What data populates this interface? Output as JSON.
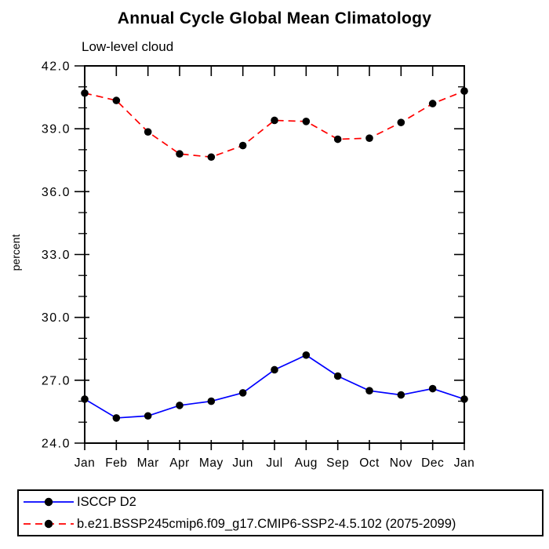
{
  "title": "Annual Cycle Global Mean Climatology",
  "subtitle": "Low-level cloud",
  "colors": {
    "background": "#ffffff",
    "axis": "#000000",
    "series1": "#0000ff",
    "series2": "#ff0000",
    "marker": "#000000"
  },
  "chart_data": {
    "type": "line",
    "title": "Annual Cycle Global Mean Climatology",
    "subtitle": "Low-level cloud",
    "xlabel": "",
    "ylabel": "percent",
    "categories": [
      "Jan",
      "Feb",
      "Mar",
      "Apr",
      "May",
      "Jun",
      "Jul",
      "Aug",
      "Sep",
      "Oct",
      "Nov",
      "Dec",
      "Jan"
    ],
    "ylim": [
      24.0,
      42.0
    ],
    "ytick_major_values": [
      24,
      27,
      30,
      33,
      36,
      39,
      42
    ],
    "ytick_major_labels": [
      "24.0",
      "27.0",
      "30.0",
      "33.0",
      "36.0",
      "39.0",
      "42.0"
    ],
    "ytick_minor_step": 1.0,
    "grid": false,
    "legend_position": "bottom-left-box",
    "series": [
      {
        "name": "ISCCP D2",
        "color": "#0000ff",
        "line_style": "solid",
        "marker": "filled-circle",
        "marker_color": "#000000",
        "values": [
          26.1,
          25.2,
          25.3,
          25.8,
          26.0,
          26.4,
          27.5,
          28.2,
          27.2,
          26.5,
          26.3,
          26.6,
          26.1
        ]
      },
      {
        "name": "b.e21.BSSP245cmip6.f09_g17.CMIP6-SSP2-4.5.102 (2075-2099)",
        "color": "#ff0000",
        "line_style": "dashed",
        "marker": "filled-circle",
        "marker_color": "#000000",
        "values": [
          40.7,
          40.35,
          38.85,
          37.8,
          37.65,
          38.2,
          39.4,
          39.35,
          38.5,
          38.55,
          39.3,
          40.2,
          40.8
        ]
      }
    ]
  }
}
